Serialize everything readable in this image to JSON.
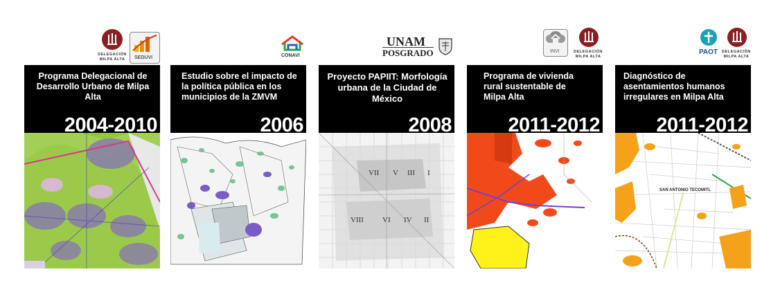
{
  "cards": [
    {
      "title": "Programa Delegacional de Desarrollo Urbano de Milpa Alta",
      "year": "2004-2010",
      "logos": {
        "seal_text_1": "DELEGACIÓN",
        "seal_text_2": "MILPA ALTA",
        "brand": "SEDUVI"
      }
    },
    {
      "title": "Estudio sobre el impacto de la política pública en los municipios de la ZMVM",
      "year": "2006",
      "logos": {
        "brand": "CONAVI"
      }
    },
    {
      "title": "Proyecto PAPIIT: Morfología urbana de la Ciudad de México",
      "year": "2008",
      "logos": {
        "unam": "UNAM",
        "posgrado": "POSGRADO"
      },
      "map_labels": [
        "VII",
        "V",
        "III",
        "I",
        "VIII",
        "VI",
        "IV",
        "II"
      ]
    },
    {
      "title": "Programa de vivienda rural sustentable de Milpa Alta",
      "year": "2011-2012",
      "logos": {
        "brand": "INVI",
        "seal_text_1": "DELEGACIÓN",
        "seal_text_2": "MILPA ALTA"
      }
    },
    {
      "title": "Diagnóstico de asentamientos humanos irregulares en Milpa Alta",
      "year": "2011-2012",
      "logos": {
        "brand": "PAOT",
        "seal_text_1": "DELEGACIÓN",
        "seal_text_2": "MILPA ALTA"
      },
      "map_labels": [
        "SAN ANTONIO TECOMITL"
      ]
    }
  ]
}
